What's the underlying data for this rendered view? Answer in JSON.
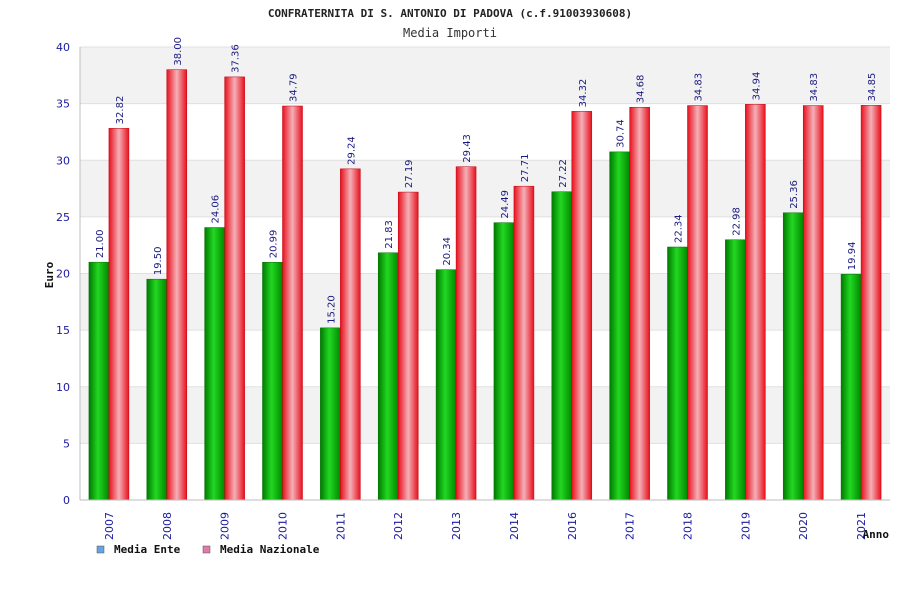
{
  "chart_data": {
    "type": "bar",
    "title": "CONFRATERNITA DI S. ANTONIO DI PADOVA (c.f.91003930608)",
    "subtitle": "Media Importi",
    "xlabel": "Anno",
    "ylabel": "Euro",
    "ylim": [
      0,
      40
    ],
    "yticks": [
      "0",
      "5",
      "10",
      "15",
      "20",
      "25",
      "30",
      "35",
      "40"
    ],
    "grid": true,
    "legend_position": "bottom-left",
    "categories": [
      "2007",
      "2008",
      "2009",
      "2010",
      "2011",
      "2012",
      "2013",
      "2014",
      "2016",
      "2017",
      "2018",
      "2019",
      "2020",
      "2021"
    ],
    "series": [
      {
        "name": "Media Ente",
        "color": "#00b000",
        "legend_color": "#66a3e0",
        "values": [
          21.0,
          19.5,
          24.06,
          20.99,
          15.2,
          21.83,
          20.34,
          24.49,
          27.22,
          30.74,
          22.34,
          22.98,
          25.36,
          19.94
        ],
        "labels": [
          "21.00",
          "19.50",
          "24.06",
          "20.99",
          "15.20",
          "21.83",
          "20.34",
          "24.49",
          "27.22",
          "30.74",
          "22.34",
          "22.98",
          "25.36",
          "19.94"
        ]
      },
      {
        "name": "Media Nazionale",
        "color": "#e8101c",
        "legend_color": "#e07aa8",
        "values": [
          32.82,
          38.0,
          37.36,
          34.79,
          29.24,
          27.19,
          29.43,
          27.71,
          34.32,
          34.68,
          34.83,
          34.94,
          34.83,
          34.85
        ],
        "labels": [
          "32.82",
          "38.00",
          "37.36",
          "34.79",
          "29.24",
          "27.19",
          "29.43",
          "27.71",
          "34.32",
          "34.68",
          "34.83",
          "34.94",
          "34.83",
          "34.85"
        ]
      }
    ]
  }
}
